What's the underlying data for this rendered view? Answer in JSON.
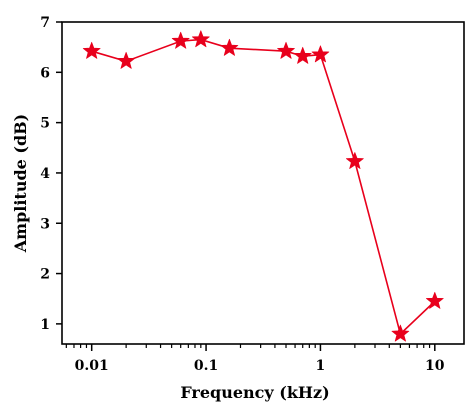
{
  "chart_data": {
    "type": "line",
    "title": "",
    "xlabel": "Frequency (kHz)",
    "ylabel": "Amplitude (dB)",
    "xscale": "log",
    "xlim": [
      0.0055,
      18
    ],
    "ylim": [
      0.6,
      7
    ],
    "xticks": [
      0.01,
      0.1,
      1,
      10
    ],
    "xtick_labels": [
      "0.01",
      "0.1",
      "1",
      "10"
    ],
    "yticks": [
      1,
      2,
      3,
      4,
      5,
      6,
      7
    ],
    "ytick_labels": [
      "1",
      "2",
      "3",
      "4",
      "5",
      "6",
      "7"
    ],
    "grid": false,
    "legend": "none",
    "series": [
      {
        "color": "#e8001c",
        "marker": "star",
        "x": [
          0.01,
          0.02,
          0.06,
          0.09,
          0.16,
          0.5,
          0.7,
          1.0,
          2.0,
          5.0,
          10.0
        ],
        "y": [
          6.42,
          6.22,
          6.62,
          6.65,
          6.48,
          6.42,
          6.32,
          6.35,
          4.23,
          0.8,
          1.45
        ]
      }
    ]
  }
}
